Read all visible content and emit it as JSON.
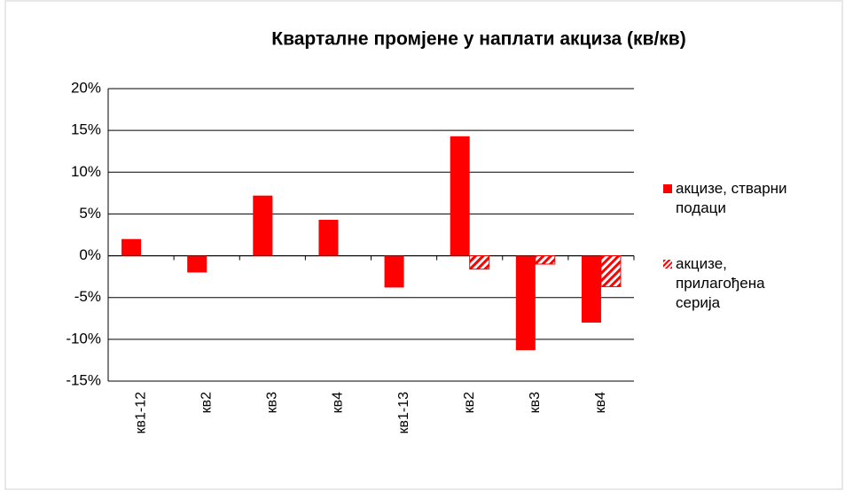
{
  "chart_data": {
    "type": "bar",
    "title": "Кварталне промјене у наплати акциза (кв/кв)",
    "categories": [
      "кв1-12",
      "кв2",
      "кв3",
      "кв4",
      "кв1-13",
      "кв2",
      "кв3",
      "кв4"
    ],
    "series": [
      {
        "name": "акцизе, стварни подаци",
        "color": "#ff0000",
        "values": [
          2,
          -2,
          7.2,
          4.3,
          -3.8,
          14.3,
          -11.3,
          -8
        ]
      },
      {
        "name": "акцизе, прилагођена серија",
        "color": "#ff0000",
        "pattern": "hatch",
        "values": [
          null,
          null,
          null,
          null,
          null,
          -1.6,
          -1,
          -3.7
        ]
      }
    ],
    "ylim": [
      -15,
      20
    ],
    "yticks": [
      {
        "value": -15,
        "label": "-15%"
      },
      {
        "value": -10,
        "label": "-10%"
      },
      {
        "value": -5,
        "label": "-5%"
      },
      {
        "value": 0,
        "label": "0%"
      },
      {
        "value": 5,
        "label": "5%"
      },
      {
        "value": 10,
        "label": "10%"
      },
      {
        "value": 15,
        "label": "15%"
      },
      {
        "value": 20,
        "label": "20%"
      }
    ],
    "grid": true
  }
}
